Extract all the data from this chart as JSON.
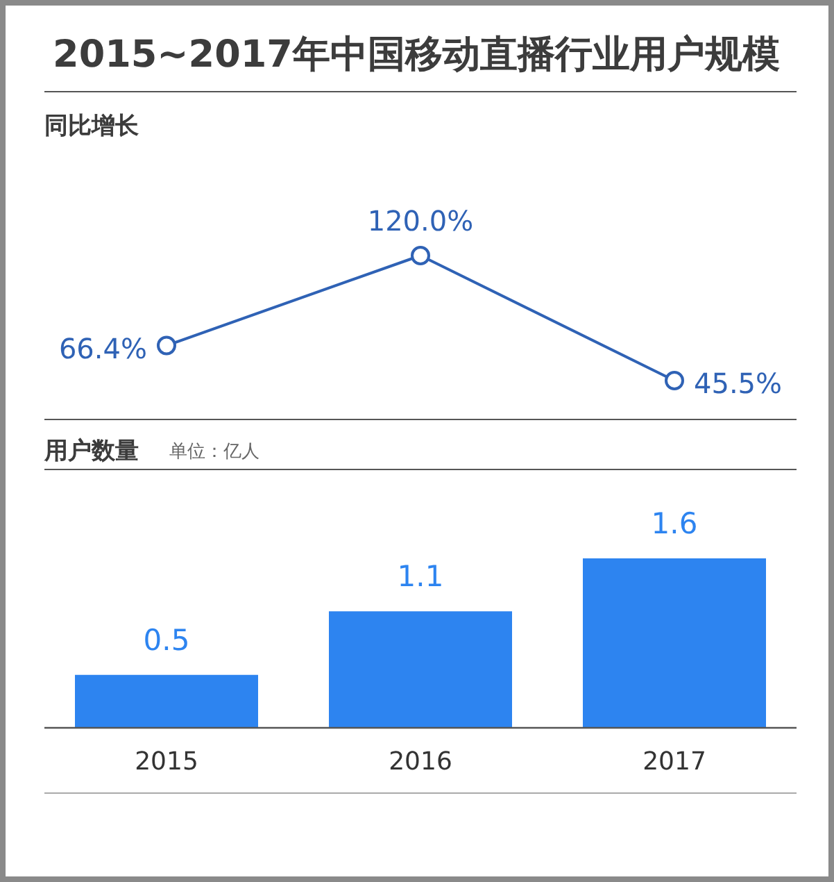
{
  "chart_data": [
    {
      "type": "line",
      "title": "2015~2017年中国移动直播行业用户规模",
      "subtitle": "同比增长",
      "categories": [
        "2015",
        "2016",
        "2017"
      ],
      "values": [
        66.4,
        120.0,
        45.5
      ],
      "value_labels": [
        "66.4%",
        "120.0%",
        "45.5%"
      ],
      "color": "#2f62b5",
      "marker": "circle",
      "tick_labels": false
    },
    {
      "type": "bar",
      "title": "用户数量",
      "subtitle": "单位：亿人",
      "categories": [
        "2015",
        "2016",
        "2017"
      ],
      "values": [
        0.5,
        1.1,
        1.6
      ],
      "data_labels": true,
      "color": "#2d84f0"
    }
  ]
}
